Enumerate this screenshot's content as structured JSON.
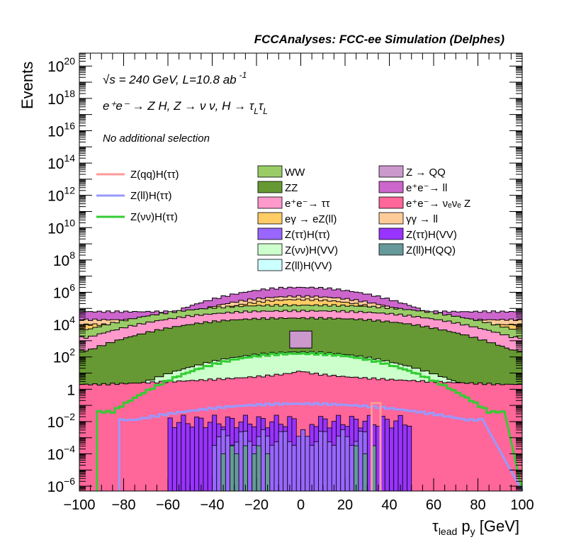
{
  "chart_data": {
    "type": "area",
    "title": "FCCAnalyses: FCC-ee Simulation (Delphes)",
    "ylabel": "Events",
    "xlabel_main": "τ",
    "xlabel_sub1": "lead",
    "xlabel_mid": " p",
    "xlabel_sub2": "y",
    "xlabel_unit": " [GeV]",
    "xlim": [
      -100,
      100
    ],
    "ylim_log10": [
      -6.3,
      20.8
    ],
    "log_y": true,
    "x_ticks": [
      "−100",
      "−80",
      "−60",
      "−40",
      "−20",
      "0",
      "20",
      "40",
      "60",
      "80",
      "100"
    ],
    "x_tick_values": [
      -100,
      -80,
      -60,
      -40,
      -20,
      0,
      20,
      40,
      60,
      80,
      100
    ],
    "y_ticks": [
      {
        "exp": -6,
        "base": "10",
        "sup": "−6"
      },
      {
        "exp": -4,
        "base": "10",
        "sup": "−4"
      },
      {
        "exp": -2,
        "base": "10",
        "sup": "−2"
      },
      {
        "exp": 0,
        "base": "1",
        "sup": ""
      },
      {
        "exp": 2,
        "base": "10",
        "sup": "2"
      },
      {
        "exp": 4,
        "base": "10",
        "sup": "4"
      },
      {
        "exp": 6,
        "base": "10",
        "sup": "6"
      },
      {
        "exp": 8,
        "base": "10",
        "sup": "8"
      },
      {
        "exp": 10,
        "base": "10",
        "sup": "10"
      },
      {
        "exp": 12,
        "base": "10",
        "sup": "12"
      },
      {
        "exp": 14,
        "base": "10",
        "sup": "14"
      },
      {
        "exp": 16,
        "base": "10",
        "sup": "16"
      },
      {
        "exp": 18,
        "base": "10",
        "sup": "18"
      },
      {
        "exp": 20,
        "base": "10",
        "sup": "20"
      }
    ],
    "annotations": {
      "energy_prefix": "√s",
      "energy_rest": " = 240 GeV, L=10.8 ab",
      "lumi_sup": "-1",
      "process": "e⁺e⁻ → Z H, Z  → ν ν, H  → τ",
      "process_sub": "L",
      "process_tau2": "τ",
      "process_sub2": "L",
      "selection": "No additional selection"
    },
    "signal_legend": [
      {
        "name": "Z(qq)H(ττ)",
        "color": "#ff9999"
      },
      {
        "name": "Z(ll)H(ττ)",
        "color": "#9999ff"
      },
      {
        "name": "Z(νν)H(ττ)",
        "color": "#33cc33"
      }
    ],
    "background_legend": [
      {
        "name": "WW",
        "color": "#99cc66"
      },
      {
        "name": "Z → QQ",
        "color": "#cc99cc"
      },
      {
        "name": "ZZ",
        "color": "#669933"
      },
      {
        "name": "e⁺e⁻→ ll",
        "color": "#cc66cc"
      },
      {
        "name": "e⁺e⁻→ ττ",
        "color": "#ff99cc"
      },
      {
        "name": "e⁺e⁻→ νₑνₑ Z",
        "color": "#ff6699"
      },
      {
        "name": "eγ → eZ(ll)",
        "color": "#ffcc66"
      },
      {
        "name": "γγ → ll",
        "color": "#ffcc99"
      },
      {
        "name": "Z(ττ)H(ττ)",
        "color": "#9966ff"
      },
      {
        "name": "Z(ττ)H(VV)",
        "color": "#9933ff"
      },
      {
        "name": "Z(νν)H(VV)",
        "color": "#ccffcc"
      },
      {
        "name": "Z(ll)H(QQ)",
        "color": "#669999"
      },
      {
        "name": "Z(ll)H(VV)",
        "color": "#ccffff"
      }
    ],
    "stack": [
      {
        "name": "e⁺e⁻→ νₑνₑ Z",
        "color": "#ff6699",
        "center": 1.2,
        "edge": 0.3,
        "min": 90,
        "max": 100,
        "p": 0.5
      },
      {
        "name": "Z(ll)H(VV)",
        "color": "#ccffff",
        "center": 0.8,
        "edge": -0.8,
        "min": 75,
        "max": 92,
        "p": 2
      },
      {
        "name": "Z(νν)H(VV)",
        "color": "#ccffcc",
        "center": 2.3,
        "edge": 0.2,
        "min": 75,
        "max": 92,
        "p": 2
      },
      {
        "name": "ZZ",
        "color": "#669933",
        "center": 4.4,
        "edge": 2.4,
        "min": 96,
        "max": 100,
        "p": 2.5
      },
      {
        "name": "e⁺e⁻→ ττ",
        "color": "#ff99cc",
        "center": 4.85,
        "edge": 3.2,
        "min": 96,
        "max": 100,
        "p": 2.5
      },
      {
        "name": "WW",
        "color": "#99cc66",
        "center": 5.2,
        "edge": 3.7,
        "min": 96,
        "max": 100,
        "p": 2.5
      },
      {
        "name": "eγ → eZ(ll)",
        "color": "#ffcc66",
        "center": 5.55,
        "edge": 4.0,
        "min": 60,
        "max": 100,
        "p": 2
      },
      {
        "name": "γγ → ll",
        "color": "#ffcc99",
        "center": 5.75,
        "edge": 4.3,
        "min": 60,
        "max": 100,
        "p": 2
      },
      {
        "name": "e⁺e⁻→ ll",
        "color": "#cc66cc",
        "center": 6.3,
        "edge": 4.8,
        "min": 57,
        "max": 100,
        "p": 2
      }
    ],
    "z_qq_peak": {
      "name": "Z → QQ",
      "color": "#cc99cc",
      "x": [
        -5,
        5
      ],
      "log_bottom": 2.55,
      "log_top": 3.6
    },
    "overlay_lines": [
      {
        "name": "Z(νν)H(ττ)",
        "color": "#33cc33",
        "center": 2.2,
        "edge": -1.4,
        "min": 85,
        "max": 92,
        "p": 2.2
      },
      {
        "name": "Z(ll)H(ττ)",
        "color": "#9999ff",
        "center": -0.9,
        "edge": -1.9,
        "min": 75,
        "max": 82,
        "p": 2
      }
    ],
    "zqq_spike": {
      "name": "Z(qq)H(ττ)",
      "color": "#ff9999",
      "x": [
        32,
        36
      ],
      "log_top": -0.85
    },
    "ztautau_hvv": {
      "name": "Z(ττ)H(VV)",
      "color": "#9933ff",
      "log": -2.0,
      "range": [
        -60,
        50
      ]
    },
    "ztautau_htautau": {
      "name": "Z(ττ)H(ττ)",
      "color": "#9966ff",
      "log": -3.0,
      "range": [
        -40,
        30
      ]
    },
    "zll_hqq": {
      "name": "Z(ll)H(QQ)",
      "color": "#669999",
      "x_bins": [
        -36,
        -32,
        -30,
        -26,
        -22,
        -20,
        -16,
        24,
        28,
        32
      ],
      "log": -3.8
    }
  }
}
